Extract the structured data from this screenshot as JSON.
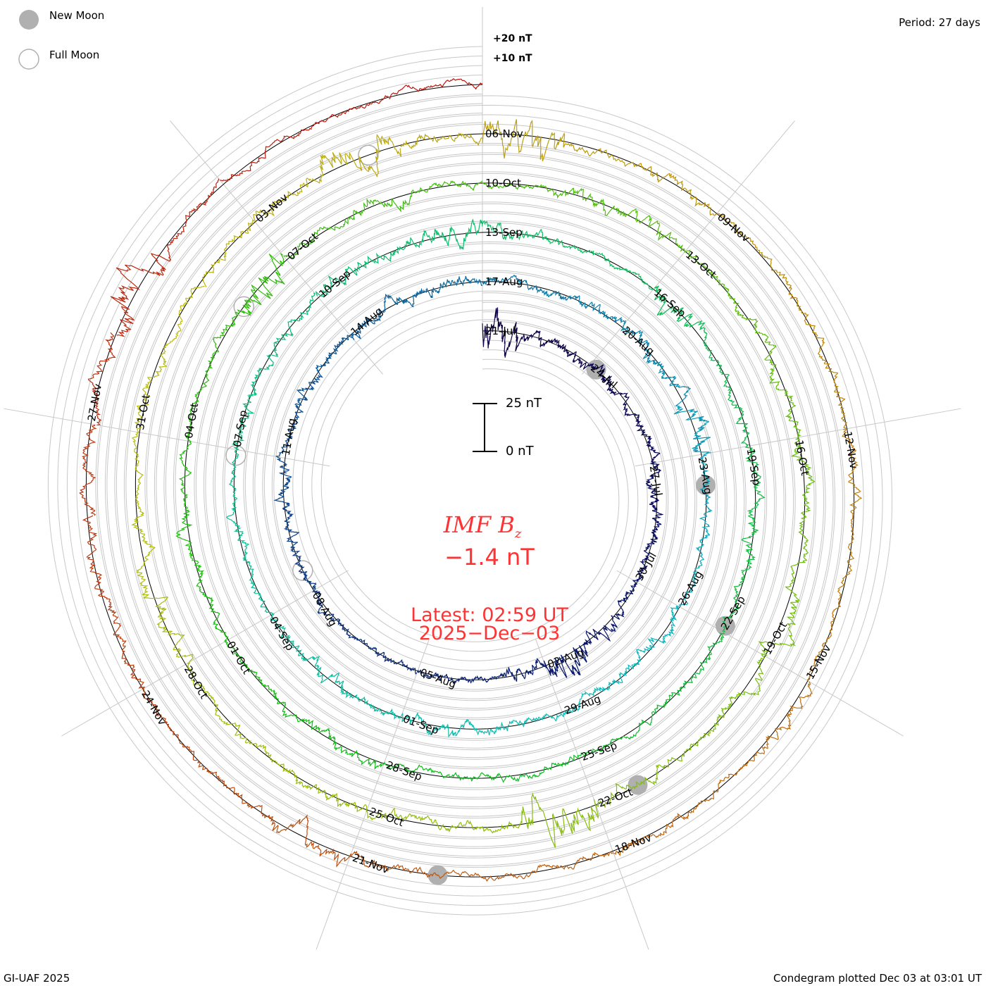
{
  "legend": {
    "new_moon": "New Moon",
    "full_moon": "Full Moon"
  },
  "period_label": "Period: 27 days",
  "footer_left": "GI-UAF 2025",
  "footer_right": "Condegram plotted Dec 03 at 03:01 UT",
  "scale": {
    "top": "25 nT",
    "bottom": "0 nT"
  },
  "center": {
    "title": "IMF B",
    "subscript": "z",
    "value": "−1.4 nT",
    "latest": "Latest: 02:59 UT",
    "date": "2025−Dec−03"
  },
  "chart_data": {
    "type": "line",
    "title": "IMF Bz condegram",
    "period_days": 27,
    "start_date": "21-Jul",
    "end_date": "03-Dec",
    "total_days": 135,
    "units": "nT",
    "offset_labels": [
      "+20 nT",
      "+10 nT"
    ],
    "grid_step_nT": 5,
    "latest_value": -1.4,
    "date_labels": [
      "21-Jul",
      "24-Jul",
      "27-Jul",
      "30-Jul",
      "02-Aug",
      "05-Aug",
      "08-Aug",
      "11-Aug",
      "14-Aug",
      "17-Aug",
      "20-Aug",
      "23-Aug",
      "26-Aug",
      "29-Aug",
      "01-Sep",
      "04-Sep",
      "07-Sep",
      "10-Sep",
      "13-Sep",
      "16-Sep",
      "19-Sep",
      "22-Sep",
      "25-Sep",
      "28-Sep",
      "01-Oct",
      "04-Oct",
      "07-Oct",
      "10-Oct",
      "13-Oct",
      "16-Oct",
      "19-Oct",
      "22-Oct",
      "25-Oct",
      "28-Oct",
      "31-Oct",
      "03-Nov",
      "06-Nov",
      "09-Nov",
      "12-Nov",
      "15-Nov",
      "18-Nov",
      "21-Nov",
      "24-Nov",
      "27-Nov"
    ],
    "new_moons_day": [
      3.2,
      33.6,
      62.9,
      92.4,
      122.0
    ],
    "full_moons_day": [
      18.5,
      47.9,
      77.1,
      106.6
    ],
    "colors": {
      "start": "#14003c",
      "end": "#cc0000"
    }
  }
}
